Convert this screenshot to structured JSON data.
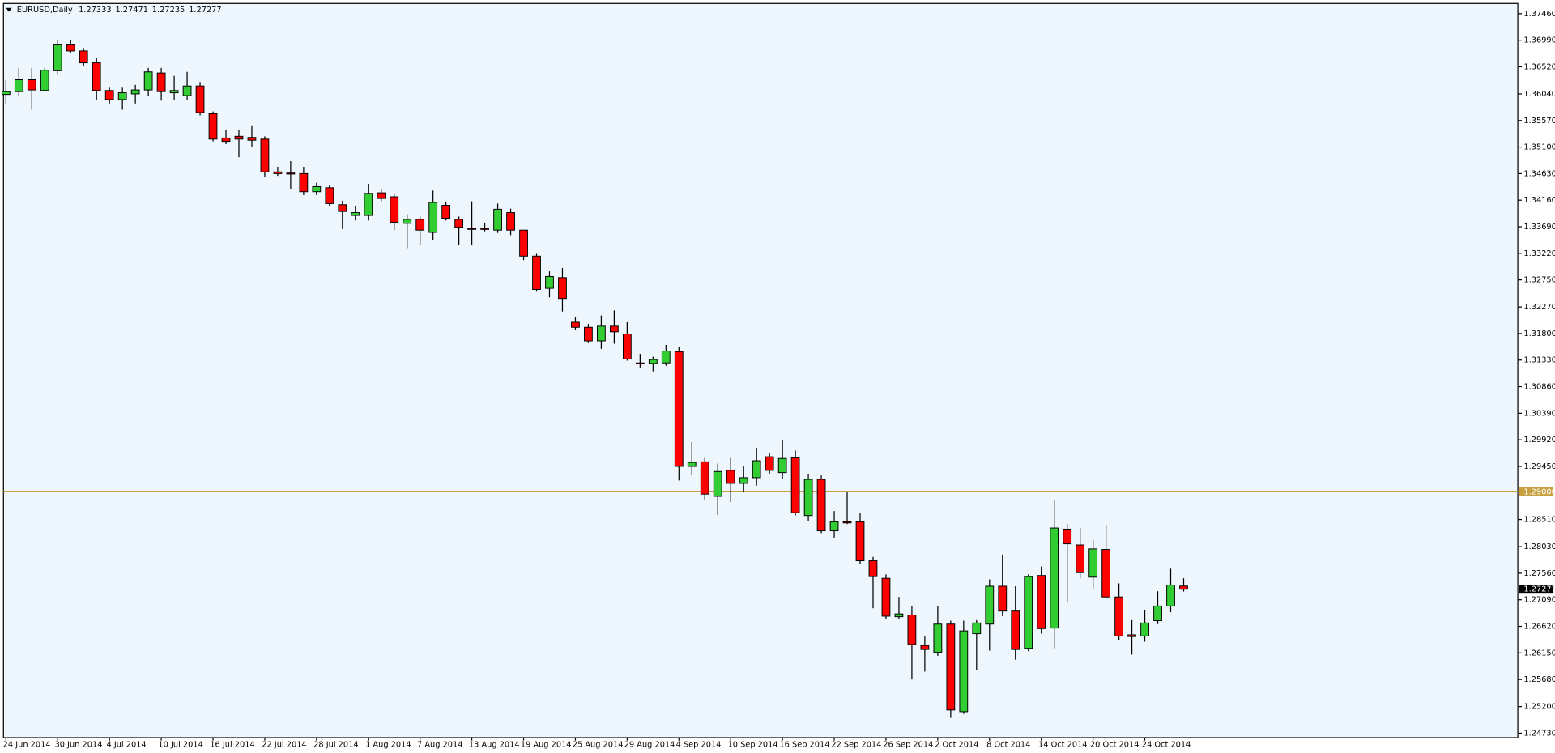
{
  "chart_data": {
    "type": "candlestick",
    "symbol": "EURUSD,Daily",
    "up_color": "#32cd32",
    "down_color": "#ff0000",
    "wick_color": "#000000",
    "categories": [
      "24 Jun 2014",
      null,
      null,
      null,
      "30 Jun 2014",
      null,
      null,
      null,
      "4 Jul 2014",
      null,
      null,
      null,
      "10 Jul 2014",
      null,
      null,
      null,
      "16 Jul 2014",
      null,
      null,
      null,
      "22 Jul 2014",
      null,
      null,
      null,
      "28 Jul 2014",
      null,
      null,
      null,
      "1 Aug 2014",
      null,
      null,
      null,
      "7 Aug 2014",
      null,
      null,
      null,
      "13 Aug 2014",
      null,
      null,
      null,
      "19 Aug 2014",
      null,
      null,
      null,
      "25 Aug 2014",
      null,
      null,
      null,
      "29 Aug 2014",
      null,
      null,
      null,
      "4 Sep 2014",
      null,
      null,
      null,
      "10 Sep 2014",
      null,
      null,
      null,
      "16 Sep 2014",
      null,
      null,
      null,
      "22 Sep 2014",
      null,
      null,
      null,
      "26 Sep 2014",
      null,
      null,
      null,
      "2 Oct 2014",
      null,
      null,
      null,
      "8 Oct 2014",
      null,
      null,
      null,
      "14 Oct 2014",
      null,
      null,
      null,
      "20 Oct 2014",
      null,
      null,
      null,
      "24 Oct 2014",
      null,
      null,
      null
    ],
    "open": [
      1.3603,
      1.3608,
      1.3629,
      1.361,
      1.3645,
      1.3692,
      1.368,
      1.3659,
      1.361,
      1.3594,
      1.3604,
      1.3611,
      1.3641,
      1.3606,
      1.3601,
      1.3618,
      1.3569,
      1.3526,
      1.3529,
      1.3527,
      1.3524,
      1.3466,
      1.3464,
      1.3463,
      1.3431,
      1.3438,
      1.3408,
      1.3389,
      1.3389,
      1.3429,
      1.3422,
      1.3375,
      1.3382,
      1.3359,
      1.3407,
      1.3382,
      1.3366,
      1.3366,
      1.3363,
      1.3394,
      1.3363,
      1.3317,
      1.326,
      1.3279,
      1.32,
      1.3191,
      1.3167,
      1.3193,
      1.3179,
      1.3128,
      1.3127,
      1.3128,
      1.3148,
      1.2945,
      1.2953,
      1.2892,
      1.2938,
      1.2915,
      1.2925,
      1.2962,
      1.2934,
      1.296,
      1.2858,
      1.2922,
      1.2831,
      1.2847,
      1.2847,
      1.2778,
      1.2747,
      1.2679,
      1.2682,
      1.2628,
      1.2616,
      1.2666,
      1.2511,
      1.2649,
      1.2666,
      1.2733,
      1.2689,
      1.2623,
      1.2752,
      1.2659,
      1.2834,
      1.2806,
      1.2749,
      1.2798,
      1.2714,
      1.2647,
      1.2645,
      1.2672,
      1.2698,
      1.27333
    ],
    "high": [
      1.3629,
      1.365,
      1.365,
      1.365,
      1.3699,
      1.3699,
      1.3685,
      1.3667,
      1.3615,
      1.3615,
      1.362,
      1.365,
      1.365,
      1.3636,
      1.3643,
      1.3625,
      1.3573,
      1.3541,
      1.3541,
      1.3547,
      1.3529,
      1.3475,
      1.3485,
      1.3475,
      1.3447,
      1.3443,
      1.3415,
      1.3405,
      1.3445,
      1.3436,
      1.3428,
      1.3391,
      1.3387,
      1.3433,
      1.3412,
      1.3387,
      1.3414,
      1.3375,
      1.341,
      1.3401,
      1.3363,
      1.3321,
      1.329,
      1.3296,
      1.3209,
      1.3197,
      1.3212,
      1.3221,
      1.32,
      1.3144,
      1.3139,
      1.316,
      1.3156,
      1.2988,
      1.296,
      1.295,
      1.296,
      1.2945,
      1.2978,
      1.2969,
      1.2992,
      1.2973,
      1.2932,
      1.2929,
      1.2866,
      1.2899,
      1.2863,
      1.2785,
      1.2754,
      1.2714,
      1.2698,
      1.2644,
      1.2698,
      1.2672,
      1.2672,
      1.2673,
      1.2745,
      1.2789,
      1.2733,
      1.2754,
      1.2768,
      1.2885,
      1.2843,
      1.2836,
      1.2815,
      1.284,
      1.2738,
      1.2673,
      1.2691,
      1.2724,
      1.2764,
      1.27471
    ],
    "low": [
      1.3585,
      1.3599,
      1.3576,
      1.3608,
      1.3638,
      1.3676,
      1.3653,
      1.3594,
      1.3587,
      1.3576,
      1.3587,
      1.3601,
      1.3592,
      1.3594,
      1.3594,
      1.3566,
      1.352,
      1.3515,
      1.3492,
      1.351,
      1.3457,
      1.3459,
      1.3436,
      1.3425,
      1.3425,
      1.3405,
      1.3365,
      1.338,
      1.338,
      1.3414,
      1.3363,
      1.3331,
      1.3336,
      1.3345,
      1.338,
      1.3336,
      1.3336,
      1.3361,
      1.3358,
      1.3354,
      1.331,
      1.3254,
      1.3244,
      1.3219,
      1.3186,
      1.3163,
      1.3153,
      1.3162,
      1.3132,
      1.312,
      1.3113,
      1.3123,
      1.292,
      1.2929,
      1.2885,
      1.2859,
      1.2882,
      1.2899,
      1.2911,
      1.2932,
      1.2922,
      1.2858,
      1.2849,
      1.2827,
      1.2819,
      1.2843,
      1.2773,
      1.2694,
      1.2675,
      1.2675,
      1.2568,
      1.2582,
      1.261,
      1.25,
      1.2507,
      1.2584,
      1.2619,
      1.268,
      1.2603,
      1.2618,
      1.2649,
      1.2623,
      1.2705,
      1.2747,
      1.2729,
      1.271,
      1.2638,
      1.2612,
      1.2635,
      1.2666,
      1.2687,
      1.27235
    ],
    "close": [
      1.3608,
      1.3629,
      1.3611,
      1.3646,
      1.3692,
      1.368,
      1.3659,
      1.361,
      1.3594,
      1.3606,
      1.3611,
      1.3643,
      1.3608,
      1.361,
      1.3618,
      1.3571,
      1.3524,
      1.352,
      1.3524,
      1.3522,
      1.3466,
      1.3463,
      1.3463,
      1.3431,
      1.344,
      1.341,
      1.3396,
      1.3394,
      1.3428,
      1.3419,
      1.3377,
      1.3382,
      1.3363,
      1.3412,
      1.3384,
      1.3368,
      1.3365,
      1.3365,
      1.34,
      1.3363,
      1.3317,
      1.3258,
      1.3281,
      1.3242,
      1.3191,
      1.3167,
      1.3193,
      1.3183,
      1.3135,
      1.3127,
      1.3134,
      1.3149,
      1.2945,
      1.2952,
      1.2896,
      1.2936,
      1.2915,
      1.2925,
      1.2955,
      1.2938,
      1.2959,
      1.2863,
      1.2922,
      1.2831,
      1.2847,
      1.2845,
      1.2778,
      1.275,
      1.268,
      1.2684,
      1.263,
      1.2621,
      1.2666,
      1.2514,
      1.2654,
      1.2668,
      1.2733,
      1.2689,
      1.2621,
      1.275,
      1.2658,
      1.2836,
      1.2808,
      1.2757,
      1.2799,
      1.2714,
      1.2645,
      1.2644,
      1.2668,
      1.2698,
      1.2735,
      1.27277
    ],
    "ylim": [
      1.2465,
      1.3764
    ],
    "yticks": [
      {
        "value": 1.3746,
        "label": "1.37460"
      },
      {
        "value": 1.3699,
        "label": "1.36990"
      },
      {
        "value": 1.3652,
        "label": "1.36520"
      },
      {
        "value": 1.3604,
        "label": "1.36040"
      },
      {
        "value": 1.3557,
        "label": "1.35570"
      },
      {
        "value": 1.351,
        "label": "1.35100"
      },
      {
        "value": 1.3463,
        "label": "1.34630"
      },
      {
        "value": 1.3416,
        "label": "1.34160"
      },
      {
        "value": 1.3369,
        "label": "1.33690"
      },
      {
        "value": 1.3322,
        "label": "1.33220"
      },
      {
        "value": 1.3275,
        "label": "1.32750"
      },
      {
        "value": 1.3227,
        "label": "1.32270"
      },
      {
        "value": 1.318,
        "label": "1.31800"
      },
      {
        "value": 1.3133,
        "label": "1.31330"
      },
      {
        "value": 1.3086,
        "label": "1.30860"
      },
      {
        "value": 1.3039,
        "label": "1.30390"
      },
      {
        "value": 1.2992,
        "label": "1.29920"
      },
      {
        "value": 1.2945,
        "label": "1.29450"
      },
      {
        "value": 1.2851,
        "label": "1.28510"
      },
      {
        "value": 1.2803,
        "label": "1.28030"
      },
      {
        "value": 1.2756,
        "label": "1.27560"
      },
      {
        "value": 1.2709,
        "label": "1.27090"
      },
      {
        "value": 1.2662,
        "label": "1.26620"
      },
      {
        "value": 1.2615,
        "label": "1.26150"
      },
      {
        "value": 1.2568,
        "label": "1.25680"
      },
      {
        "value": 1.252,
        "label": "1.25200"
      },
      {
        "value": 1.2473,
        "label": "1.24730"
      }
    ],
    "hline": {
      "value": 1.29,
      "label": "1.29000",
      "color": "#c8a040"
    }
  }
}
